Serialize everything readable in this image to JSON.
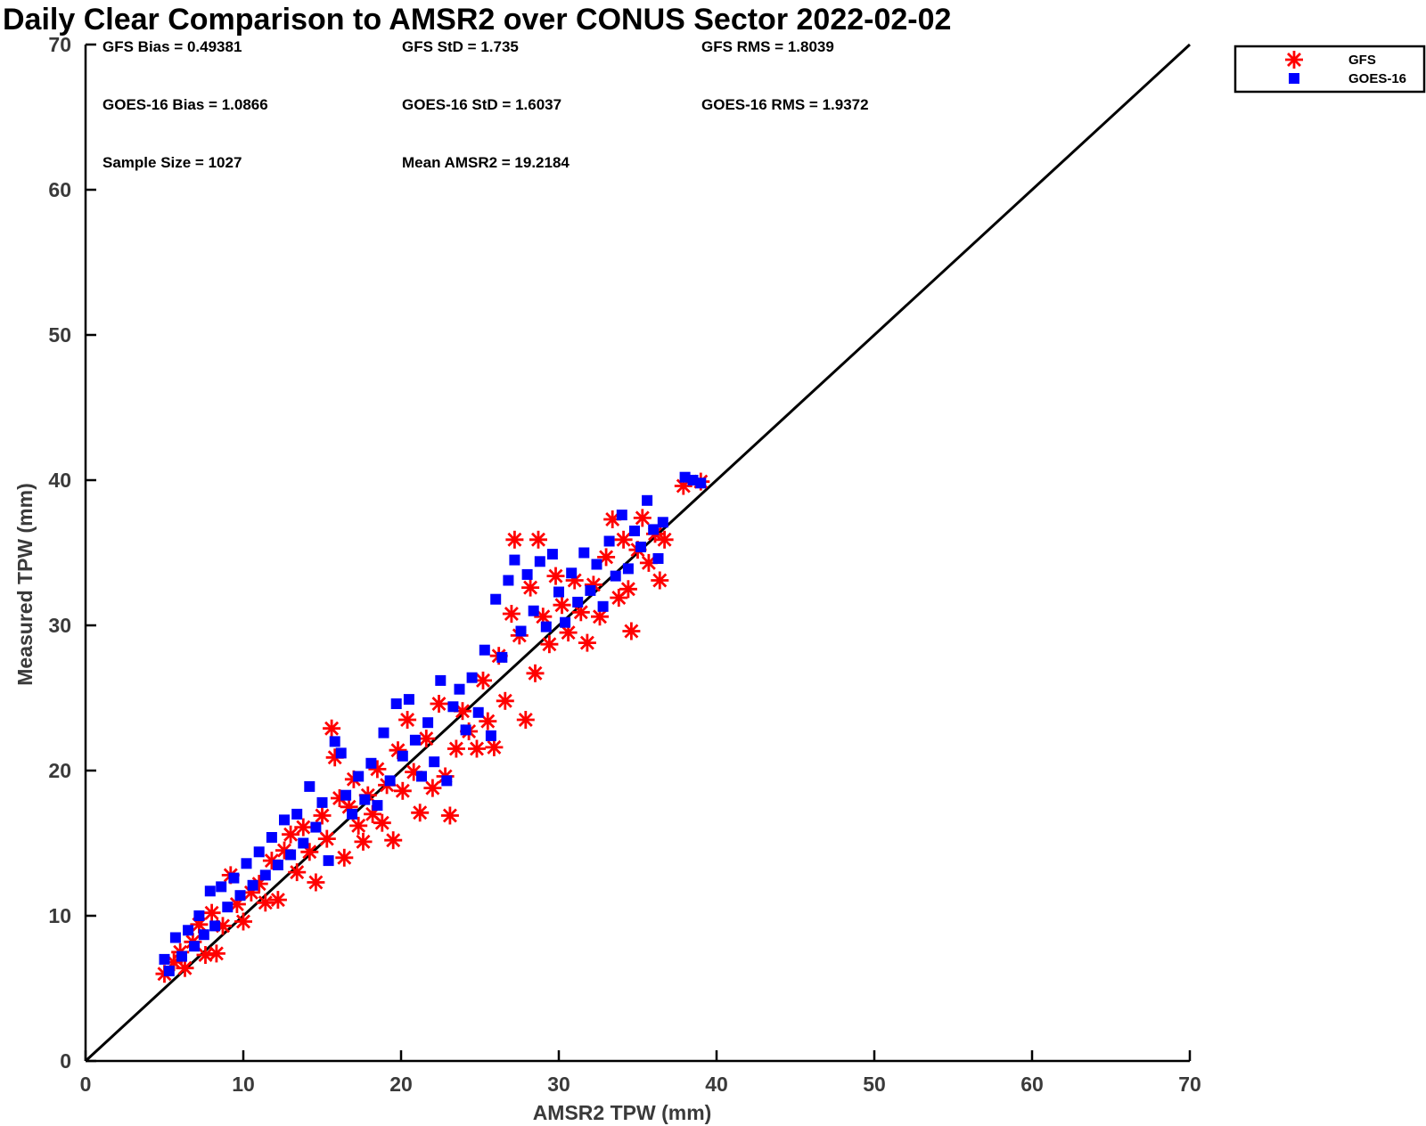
{
  "chart_data": {
    "type": "scatter",
    "title": "Daily Clear Comparison to AMSR2 over CONUS Sector 2022-02-02",
    "xlabel": "AMSR2 TPW (mm)",
    "ylabel": "Measured TPW (mm)",
    "xlim": [
      0,
      70
    ],
    "ylim": [
      0,
      70
    ],
    "xticks": [
      0,
      10,
      20,
      30,
      40,
      50,
      60,
      70
    ],
    "yticks": [
      0,
      10,
      20,
      30,
      40,
      50,
      60,
      70
    ],
    "grid": false,
    "legend_position": "outside-top-right",
    "reference_line": {
      "type": "one-to-one",
      "color": "#000000"
    },
    "stats": [
      "GFS Bias = 0.49381",
      "GFS StD = 1.735",
      "GFS RMS = 1.8039",
      "GOES-16 Bias = 1.0866",
      "GOES-16 StD = 1.6037",
      "GOES-16 RMS = 1.9372",
      "Sample Size = 1027",
      "Mean AMSR2 = 19.2184"
    ],
    "series": [
      {
        "name": "GFS",
        "marker": "asterisk",
        "color": "#ff0000",
        "points": [
          [
            5.0,
            6.0
          ],
          [
            5.6,
            6.8
          ],
          [
            6.0,
            7.5
          ],
          [
            6.3,
            6.4
          ],
          [
            6.8,
            8.2
          ],
          [
            7.2,
            9.4
          ],
          [
            7.6,
            7.3
          ],
          [
            8.0,
            10.2
          ],
          [
            8.3,
            7.4
          ],
          [
            8.7,
            9.3
          ],
          [
            9.2,
            12.8
          ],
          [
            9.6,
            10.8
          ],
          [
            10.0,
            9.6
          ],
          [
            10.5,
            11.6
          ],
          [
            11.0,
            12.2
          ],
          [
            11.4,
            10.9
          ],
          [
            11.8,
            13.8
          ],
          [
            12.2,
            11.1
          ],
          [
            12.6,
            14.5
          ],
          [
            13.0,
            15.6
          ],
          [
            13.4,
            13.0
          ],
          [
            13.8,
            16.1
          ],
          [
            14.2,
            14.4
          ],
          [
            14.6,
            12.3
          ],
          [
            15.0,
            16.9
          ],
          [
            15.3,
            15.3
          ],
          [
            15.6,
            22.9
          ],
          [
            15.8,
            20.9
          ],
          [
            16.1,
            18.1
          ],
          [
            16.4,
            14.0
          ],
          [
            16.7,
            17.5
          ],
          [
            17.0,
            19.4
          ],
          [
            17.3,
            16.2
          ],
          [
            17.6,
            15.1
          ],
          [
            17.9,
            18.3
          ],
          [
            18.2,
            17.0
          ],
          [
            18.5,
            20.1
          ],
          [
            18.8,
            16.4
          ],
          [
            19.1,
            19.0
          ],
          [
            19.5,
            15.2
          ],
          [
            19.8,
            21.4
          ],
          [
            20.1,
            18.6
          ],
          [
            20.4,
            23.5
          ],
          [
            20.8,
            19.9
          ],
          [
            21.2,
            17.1
          ],
          [
            21.6,
            22.2
          ],
          [
            22.0,
            18.8
          ],
          [
            22.4,
            24.6
          ],
          [
            22.8,
            19.6
          ],
          [
            23.1,
            16.9
          ],
          [
            23.5,
            21.5
          ],
          [
            23.9,
            24.1
          ],
          [
            24.3,
            22.7
          ],
          [
            24.8,
            21.5
          ],
          [
            25.2,
            26.2
          ],
          [
            25.5,
            23.4
          ],
          [
            25.9,
            21.6
          ],
          [
            26.2,
            27.9
          ],
          [
            26.6,
            24.8
          ],
          [
            27.0,
            30.8
          ],
          [
            27.2,
            35.9
          ],
          [
            27.5,
            29.3
          ],
          [
            27.9,
            23.5
          ],
          [
            28.2,
            32.6
          ],
          [
            28.5,
            26.7
          ],
          [
            28.7,
            35.9
          ],
          [
            29.0,
            30.6
          ],
          [
            29.4,
            28.7
          ],
          [
            29.8,
            33.4
          ],
          [
            30.2,
            31.4
          ],
          [
            30.6,
            29.5
          ],
          [
            31.0,
            33.1
          ],
          [
            31.4,
            30.9
          ],
          [
            31.8,
            28.8
          ],
          [
            32.2,
            32.8
          ],
          [
            32.6,
            30.6
          ],
          [
            33.0,
            34.7
          ],
          [
            33.4,
            37.3
          ],
          [
            33.8,
            31.9
          ],
          [
            34.1,
            35.9
          ],
          [
            34.4,
            32.5
          ],
          [
            34.6,
            29.6
          ],
          [
            35.0,
            35.2
          ],
          [
            35.3,
            37.4
          ],
          [
            35.7,
            34.3
          ],
          [
            36.1,
            36.3
          ],
          [
            36.4,
            33.1
          ],
          [
            36.7,
            35.9
          ],
          [
            37.9,
            39.6
          ],
          [
            39.0,
            39.9
          ]
        ]
      },
      {
        "name": "GOES-16",
        "marker": "square",
        "color": "#0000ff",
        "points": [
          [
            5.0,
            7.0
          ],
          [
            5.3,
            6.2
          ],
          [
            5.7,
            8.5
          ],
          [
            6.1,
            7.2
          ],
          [
            6.5,
            9.0
          ],
          [
            6.9,
            7.9
          ],
          [
            7.2,
            10.0
          ],
          [
            7.5,
            8.7
          ],
          [
            7.9,
            11.7
          ],
          [
            8.2,
            9.3
          ],
          [
            8.6,
            12.0
          ],
          [
            9.0,
            10.6
          ],
          [
            9.4,
            12.6
          ],
          [
            9.8,
            11.4
          ],
          [
            10.2,
            13.6
          ],
          [
            10.6,
            12.1
          ],
          [
            11.0,
            14.4
          ],
          [
            11.4,
            12.8
          ],
          [
            11.8,
            15.4
          ],
          [
            12.2,
            13.5
          ],
          [
            12.6,
            16.6
          ],
          [
            13.0,
            14.2
          ],
          [
            13.4,
            17.0
          ],
          [
            13.8,
            15.0
          ],
          [
            14.2,
            18.9
          ],
          [
            14.6,
            16.1
          ],
          [
            15.0,
            17.8
          ],
          [
            15.4,
            13.8
          ],
          [
            15.8,
            22.0
          ],
          [
            16.2,
            21.2
          ],
          [
            16.5,
            18.3
          ],
          [
            16.9,
            17.0
          ],
          [
            17.3,
            19.6
          ],
          [
            17.7,
            18.0
          ],
          [
            18.1,
            20.5
          ],
          [
            18.5,
            17.6
          ],
          [
            18.9,
            22.6
          ],
          [
            19.3,
            19.3
          ],
          [
            19.7,
            24.6
          ],
          [
            20.1,
            21.0
          ],
          [
            20.5,
            24.9
          ],
          [
            20.9,
            22.1
          ],
          [
            21.3,
            19.6
          ],
          [
            21.7,
            23.3
          ],
          [
            22.1,
            20.6
          ],
          [
            22.5,
            26.2
          ],
          [
            22.9,
            19.3
          ],
          [
            23.3,
            24.4
          ],
          [
            23.7,
            25.6
          ],
          [
            24.1,
            22.8
          ],
          [
            24.5,
            26.4
          ],
          [
            24.9,
            24.0
          ],
          [
            25.3,
            28.3
          ],
          [
            25.7,
            22.4
          ],
          [
            26.0,
            31.8
          ],
          [
            26.4,
            27.8
          ],
          [
            26.8,
            33.1
          ],
          [
            27.2,
            34.5
          ],
          [
            27.6,
            29.6
          ],
          [
            28.0,
            33.5
          ],
          [
            28.4,
            31.0
          ],
          [
            28.8,
            34.4
          ],
          [
            29.2,
            29.9
          ],
          [
            29.6,
            34.9
          ],
          [
            30.0,
            32.3
          ],
          [
            30.4,
            30.2
          ],
          [
            30.8,
            33.6
          ],
          [
            31.2,
            31.6
          ],
          [
            31.6,
            35.0
          ],
          [
            32.0,
            32.4
          ],
          [
            32.4,
            34.2
          ],
          [
            32.8,
            31.3
          ],
          [
            33.2,
            35.8
          ],
          [
            33.6,
            33.4
          ],
          [
            34.0,
            37.6
          ],
          [
            34.4,
            33.9
          ],
          [
            34.8,
            36.5
          ],
          [
            35.2,
            35.4
          ],
          [
            35.6,
            38.6
          ],
          [
            36.0,
            36.6
          ],
          [
            36.3,
            34.6
          ],
          [
            36.6,
            37.1
          ],
          [
            38.0,
            40.2
          ],
          [
            38.5,
            40.0
          ],
          [
            39.0,
            39.8
          ]
        ]
      }
    ]
  }
}
